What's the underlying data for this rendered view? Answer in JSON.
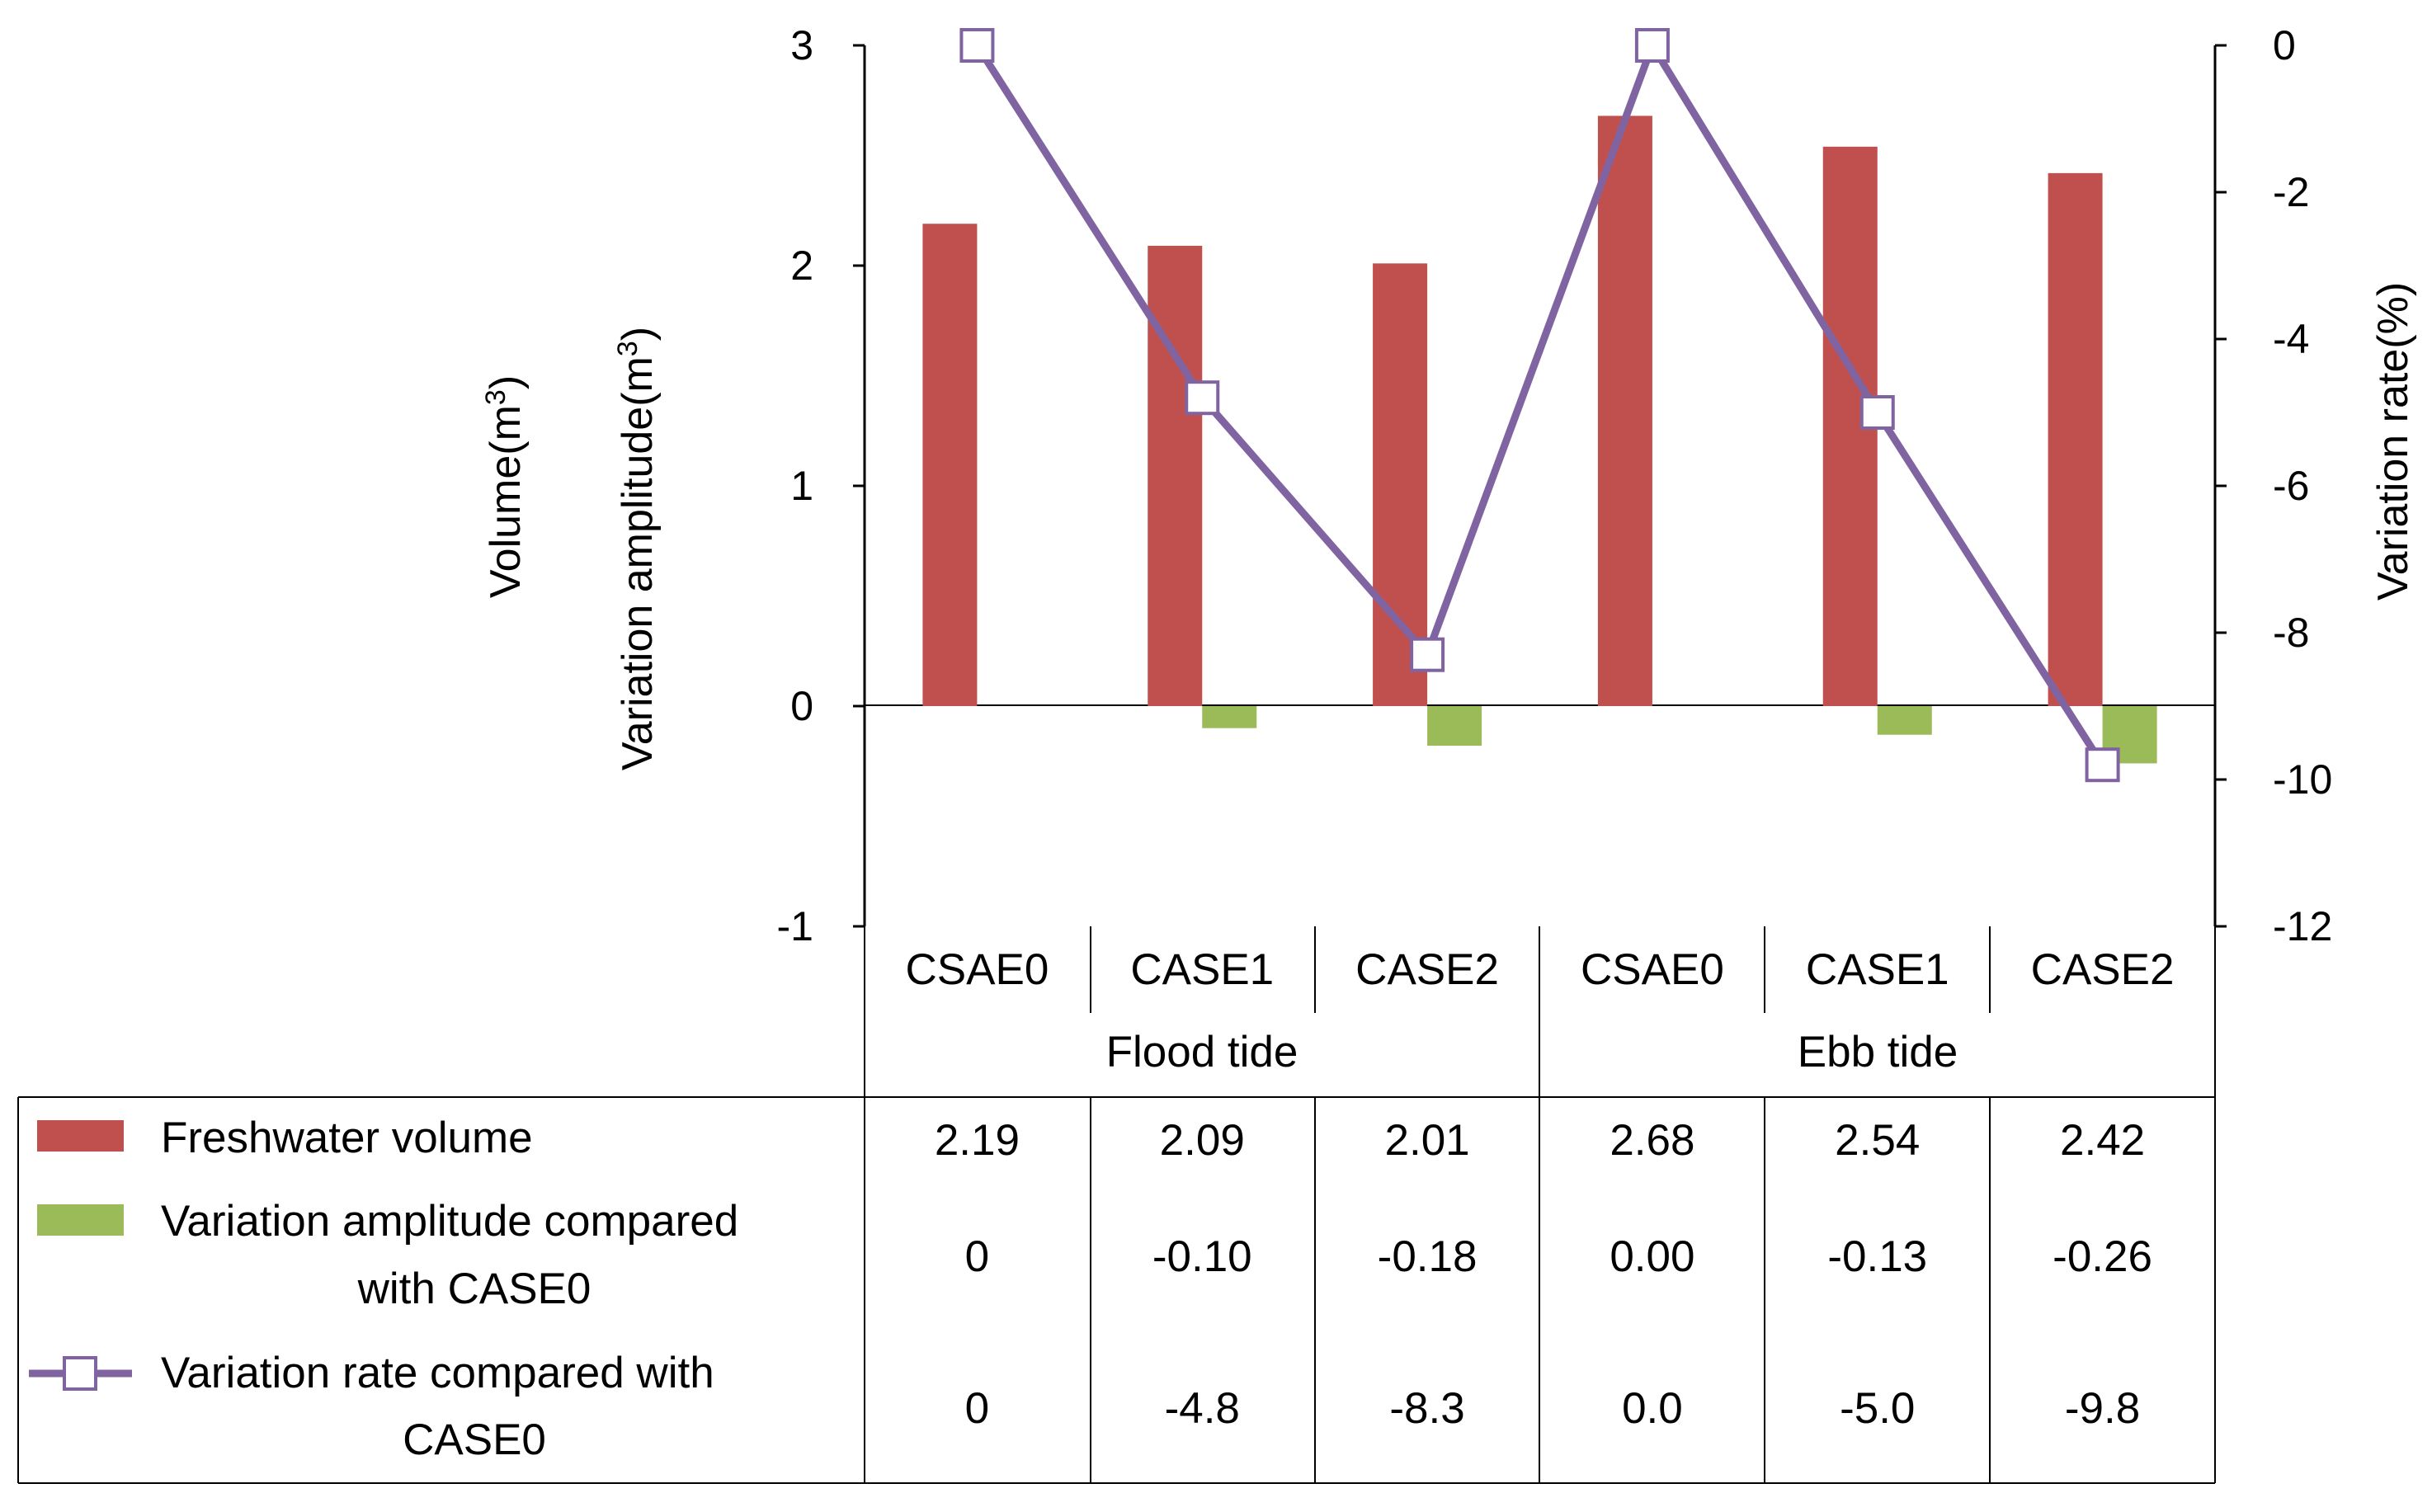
{
  "chart_data": {
    "type": "bar+line",
    "groups": [
      {
        "label": "Flood tide",
        "categories": [
          "CSAE0",
          "CASE1",
          "CASE2"
        ]
      },
      {
        "label": "Ebb tide",
        "categories": [
          "CSAE0",
          "CASE1",
          "CASE2"
        ]
      }
    ],
    "categories": [
      "CSAE0",
      "CASE1",
      "CASE2",
      "CSAE0",
      "CASE1",
      "CASE2"
    ],
    "series": [
      {
        "name": "Freshwater volume",
        "kind": "bar",
        "axis": "left",
        "color": "#c0504d",
        "values": [
          2.19,
          2.09,
          2.01,
          2.68,
          2.54,
          2.42
        ],
        "labels": [
          "2.19",
          "2.09",
          "2.01",
          "2.68",
          "2.54",
          "2.42"
        ]
      },
      {
        "name_line1": "Variation amplitude compared",
        "name_line2": "with CASE0",
        "kind": "bar",
        "axis": "left",
        "color": "#9bbb59",
        "values": [
          0,
          -0.1,
          -0.18,
          0.0,
          -0.13,
          -0.26
        ],
        "labels": [
          "0",
          "-0.10",
          "-0.18",
          "0.00",
          "-0.13",
          "-0.26"
        ]
      },
      {
        "name_line1": "Variation rate compared with",
        "name_line2": "CASE0",
        "kind": "line",
        "axis": "right",
        "color": "#8064a2",
        "marker": "open-square",
        "values": [
          0,
          -4.8,
          -8.3,
          0.0,
          -5.0,
          -9.8
        ],
        "labels": [
          "0",
          "-4.8",
          "-8.3",
          "0.0",
          "-5.0",
          "-9.8"
        ]
      }
    ],
    "left_axis": {
      "label_line1": "Volume(m",
      "label_line2": "Variation amplitude(m",
      "sup": "3",
      "close": ")",
      "ylim": [
        -1,
        3
      ],
      "ticks": [
        3,
        2,
        1,
        0,
        -1
      ],
      "tick_labels": [
        "3",
        "2",
        "1",
        "0",
        "-1"
      ]
    },
    "right_axis": {
      "label": "Variation rate(%)",
      "ylim": [
        -12,
        0
      ],
      "ticks": [
        0,
        -2,
        -4,
        -6,
        -8,
        -10,
        -12
      ],
      "tick_labels": [
        "0",
        "-2",
        "-4",
        "-6",
        "-8",
        "-10",
        "-12"
      ]
    },
    "grid": false,
    "legend": "data-table-below"
  }
}
